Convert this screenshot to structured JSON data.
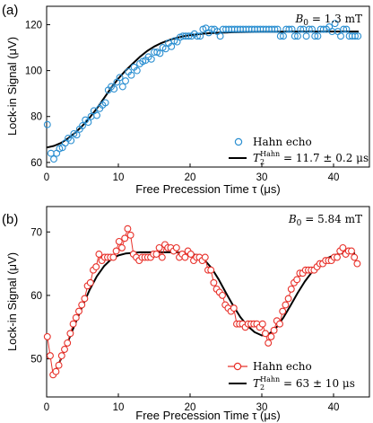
{
  "chart_data": [
    {
      "type": "scatter",
      "panel_label": "(a)",
      "annotation": "B0 = 1.3 mT",
      "annotation_parts": {
        "symbol": "B",
        "sub": "0",
        "rest": " = 1.3 mT"
      },
      "xlabel": "Free Precession Time τ (μs)",
      "ylabel": "Lock-in Signal (μV)",
      "xlim": [
        0,
        45
      ],
      "ylim": [
        58,
        128
      ],
      "xticks": [
        0,
        10,
        20,
        30,
        40
      ],
      "yticks": [
        60,
        80,
        100,
        120
      ],
      "grid": false,
      "legend_position": "bottom-right",
      "marker_color": "#2b8fd1",
      "fit_color": "#000000",
      "series": [
        {
          "name": "Hahn echo",
          "kind": "markers",
          "x": [
            0.1,
            0.6,
            1.0,
            1.4,
            1.8,
            2.2,
            2.6,
            3.0,
            3.4,
            3.8,
            4.2,
            4.6,
            5.0,
            5.4,
            5.8,
            6.2,
            6.6,
            7.0,
            7.4,
            7.8,
            8.2,
            8.6,
            9.0,
            9.4,
            9.8,
            10.2,
            10.6,
            11.0,
            11.4,
            11.8,
            12.2,
            12.6,
            13.0,
            13.4,
            13.8,
            14.2,
            14.6,
            15.0,
            15.4,
            15.8,
            16.2,
            16.6,
            17.0,
            17.4,
            17.8,
            18.2,
            18.6,
            19.0,
            19.4,
            19.8,
            20.2,
            20.6,
            21.0,
            21.4,
            21.8,
            22.2,
            22.6,
            23.0,
            23.4,
            23.8,
            24.2,
            24.6,
            25.0,
            25.4,
            25.8,
            26.2,
            26.6,
            27.0,
            27.4,
            27.8,
            28.2,
            28.6,
            29.0,
            29.4,
            29.8,
            30.2,
            30.6,
            31.0,
            31.4,
            31.8,
            32.2,
            32.6,
            33.0,
            33.4,
            33.8,
            34.2,
            34.6,
            35.0,
            35.4,
            35.8,
            36.2,
            36.6,
            37.0,
            37.4,
            37.8,
            38.2,
            38.6,
            39.0,
            39.4,
            39.8,
            40.2,
            40.6,
            41.0,
            41.4,
            41.8,
            42.2,
            42.6,
            43.0,
            43.4
          ],
          "y": [
            76.5,
            64,
            61.5,
            64,
            66,
            66.5,
            68.5,
            70.5,
            69.5,
            72.5,
            72,
            74.5,
            76,
            78.5,
            77.5,
            80,
            82.5,
            80.5,
            83.5,
            85,
            86,
            91.5,
            93,
            92,
            95,
            97,
            93,
            95.5,
            99.5,
            98,
            101.5,
            100,
            103,
            104,
            104.5,
            106,
            105,
            108,
            108,
            107.5,
            110,
            109.5,
            112,
            110.5,
            113,
            112.5,
            114.5,
            115,
            115,
            115,
            115,
            116,
            115,
            115,
            118,
            118.5,
            116.5,
            118,
            118,
            117,
            115,
            118,
            118,
            118,
            118,
            118,
            118,
            118,
            118,
            118,
            118,
            118,
            118,
            118,
            118,
            118,
            118,
            118,
            118,
            118,
            118,
            115,
            115,
            118,
            118,
            118,
            115,
            115,
            118,
            118,
            115,
            118,
            118,
            115,
            115,
            118,
            118,
            118,
            119,
            117,
            120.5,
            117,
            115,
            118,
            118,
            115,
            115,
            115,
            115
          ]
        },
        {
          "name": "T2Hahn = 11.7 ± 0.2 μs",
          "kind": "line",
          "x": [
            0,
            1,
            2,
            3,
            4,
            5,
            6,
            7,
            8,
            9,
            10,
            11,
            12,
            13,
            14,
            15,
            16,
            17,
            18,
            19,
            20,
            21,
            22,
            23,
            24,
            25,
            26,
            28,
            30,
            32,
            34,
            36,
            38,
            40,
            42,
            43.5
          ],
          "y": [
            66.5,
            67.2,
            68.5,
            70.5,
            73,
            76,
            79.5,
            83.5,
            88,
            92.5,
            96.5,
            100,
            103,
            106,
            108.5,
            110.5,
            112,
            113.2,
            114.2,
            114.9,
            115.4,
            115.8,
            116.1,
            116.3,
            116.5,
            116.6,
            116.7,
            116.8,
            116.9,
            116.9,
            117,
            117,
            117,
            117,
            117,
            117
          ]
        }
      ],
      "legend": [
        {
          "label": "Hahn echo"
        },
        {
          "label_parts": {
            "pre": "T",
            "sub": "2",
            "sup": "Hahn",
            "rest": " = 11.7 ± 0.2 μs"
          }
        }
      ]
    },
    {
      "type": "scatter",
      "panel_label": "(b)",
      "annotation": "B0 = 5.84 mT",
      "annotation_parts": {
        "symbol": "B",
        "sub": "0",
        "rest": " = 5.84 mT"
      },
      "xlabel": "Free Precession Time τ (μs)",
      "ylabel": "Lock-in Signal (μV)",
      "xlim": [
        0,
        45
      ],
      "ylim": [
        44,
        74
      ],
      "xticks": [
        0,
        10,
        20,
        30,
        40
      ],
      "yticks": [
        50,
        60,
        70
      ],
      "grid": false,
      "legend_position": "bottom-right",
      "marker_color": "#e8312a",
      "fit_color": "#000000",
      "series": [
        {
          "name": "Hahn echo",
          "kind": "markers-line",
          "x": [
            0.1,
            0.5,
            0.9,
            1.3,
            1.7,
            2.1,
            2.5,
            2.9,
            3.3,
            3.7,
            4.1,
            4.5,
            4.9,
            5.3,
            5.7,
            6.1,
            6.5,
            6.9,
            7.3,
            7.7,
            8.1,
            8.5,
            8.9,
            9.3,
            9.7,
            10.1,
            10.5,
            10.9,
            11.3,
            11.7,
            12.1,
            12.5,
            12.9,
            13.3,
            13.7,
            14.1,
            14.5,
            14.9,
            15.3,
            15.7,
            16.1,
            16.5,
            16.9,
            17.3,
            17.7,
            18.1,
            18.5,
            18.9,
            19.3,
            19.7,
            20.1,
            20.5,
            20.9,
            21.3,
            21.7,
            22.1,
            22.5,
            22.9,
            23.3,
            23.7,
            24.1,
            24.5,
            24.9,
            25.3,
            25.7,
            26.1,
            26.5,
            26.9,
            27.3,
            27.7,
            28.1,
            28.5,
            28.9,
            29.3,
            29.7,
            30.1,
            30.5,
            30.9,
            31.3,
            31.7,
            32.1,
            32.5,
            32.9,
            33.3,
            33.7,
            34.1,
            34.5,
            34.9,
            35.3,
            35.7,
            36.1,
            36.5,
            36.9,
            37.3,
            37.7,
            38.1,
            38.5,
            38.9,
            39.3,
            39.7,
            40.1,
            40.5,
            40.9,
            41.3,
            41.7,
            42.1,
            42.5,
            42.9,
            43.3
          ],
          "y": [
            53.5,
            50.5,
            47.5,
            48,
            49,
            50.5,
            51.5,
            52.5,
            54,
            55.5,
            56.5,
            57.5,
            58.5,
            59.5,
            61.5,
            62,
            64,
            64.5,
            66.5,
            65.5,
            66,
            66,
            66,
            66,
            67,
            68.5,
            67.5,
            69,
            70.5,
            69.5,
            66.5,
            66,
            65.5,
            66,
            66,
            66,
            66,
            66.5,
            66.5,
            67.5,
            66,
            68,
            67.5,
            67.5,
            67,
            67.5,
            66,
            66.5,
            66,
            67,
            66.5,
            65.5,
            66,
            66,
            65.5,
            66,
            64,
            64,
            62,
            61,
            60.5,
            60,
            58.5,
            58,
            57.5,
            58,
            55.5,
            55.5,
            55.5,
            55,
            55.5,
            55.5,
            55.5,
            55.5,
            55,
            55.5,
            54,
            52.5,
            53.5,
            54.5,
            56,
            55.5,
            57.5,
            58.5,
            59.5,
            61,
            62,
            62.5,
            63.5,
            63.5,
            64,
            64,
            64,
            64,
            64.5,
            65,
            65,
            65.5,
            65.5,
            65.5,
            66,
            66,
            67,
            67.5,
            66.5,
            67,
            67,
            66,
            65
          ]
        },
        {
          "name": "T2Hahn = 63 ± 10 μs",
          "kind": "line",
          "x": [
            1,
            2,
            3,
            4,
            5,
            6,
            7,
            8,
            9,
            10,
            11,
            12,
            13,
            14,
            15,
            16,
            17,
            18,
            19,
            20,
            21,
            22,
            23,
            24,
            25,
            26,
            27,
            28,
            29,
            30,
            31,
            32,
            33,
            34,
            35,
            36,
            37,
            38,
            39,
            40,
            41,
            42,
            43
          ],
          "y": [
            47.5,
            50,
            52.8,
            55.6,
            58.3,
            60.9,
            63,
            64.6,
            65.7,
            66.3,
            66.6,
            66.7,
            66.8,
            66.8,
            66.8,
            66.8,
            66.8,
            66.8,
            66.7,
            66.6,
            66.3,
            65.6,
            64.3,
            62.5,
            60.4,
            58.4,
            56.6,
            55.2,
            54.2,
            53.7,
            53.9,
            54.9,
            56.5,
            58.4,
            60.4,
            62.2,
            63.7,
            64.9,
            65.8,
            66.3,
            66.6,
            66.7,
            66.6
          ]
        }
      ],
      "legend": [
        {
          "label": "Hahn echo"
        },
        {
          "label_parts": {
            "pre": "T",
            "sub": "2",
            "sup": "Hahn",
            "rest": " = 63 ± 10 μs"
          }
        }
      ]
    }
  ]
}
